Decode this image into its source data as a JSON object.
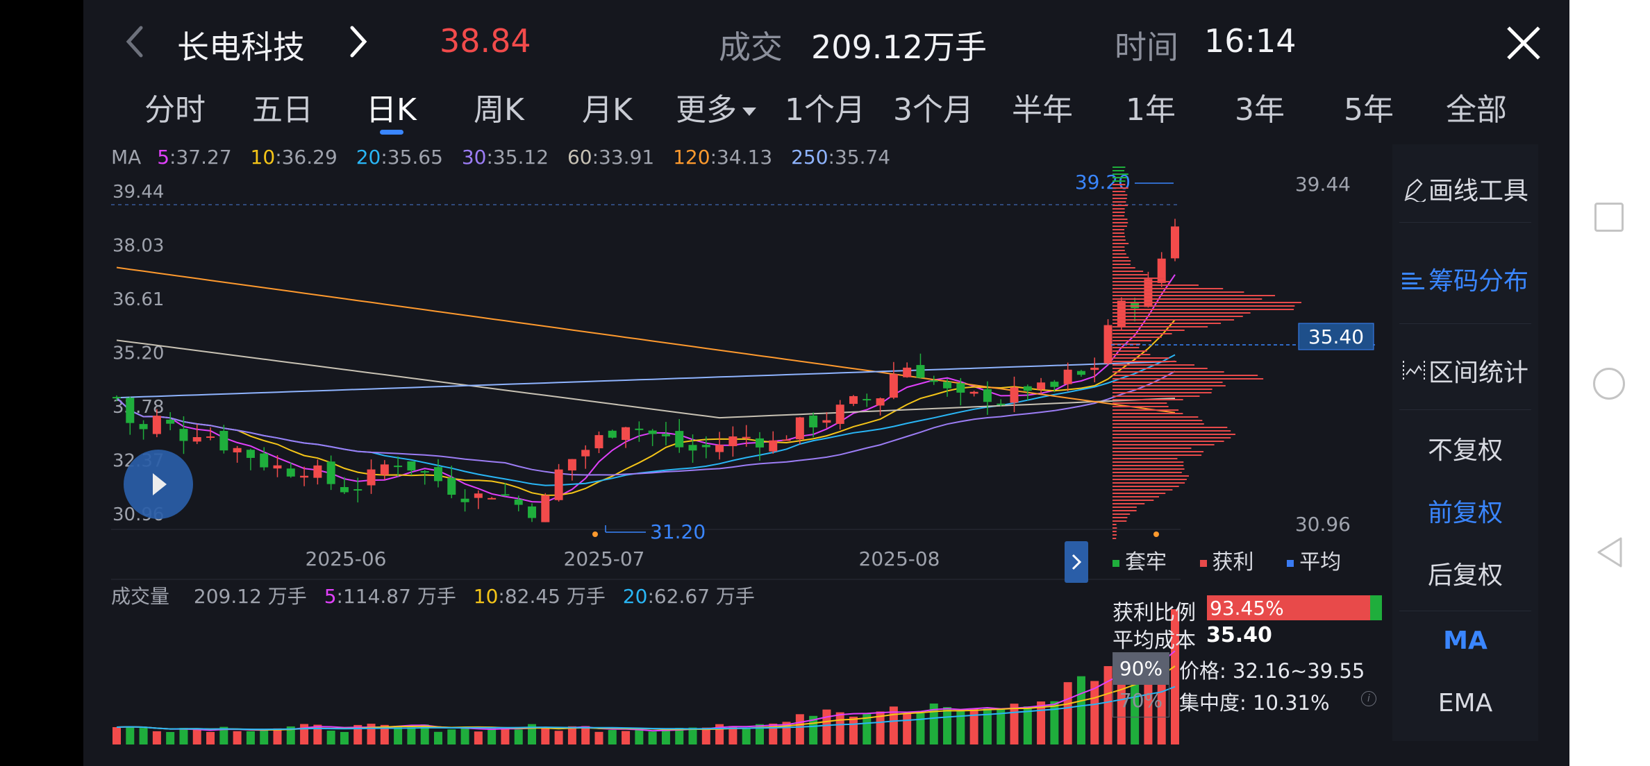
{
  "header": {
    "stock_name": "长电科技",
    "price": "38.84",
    "volume_label": "成交",
    "volume_value": "209.12万手",
    "time_label": "时间",
    "time_value": "16:14"
  },
  "tabs": [
    {
      "label": "分时"
    },
    {
      "label": "五日"
    },
    {
      "label": "日K",
      "active": true
    },
    {
      "label": "周K"
    },
    {
      "label": "月K"
    },
    {
      "label": "更多"
    },
    {
      "label": "1个月"
    },
    {
      "label": "3个月"
    },
    {
      "label": "半年"
    },
    {
      "label": "1年"
    },
    {
      "label": "3年"
    },
    {
      "label": "5年"
    },
    {
      "label": "全部"
    }
  ],
  "ma_legend": {
    "title": "MA",
    "items": [
      {
        "key": "5",
        "value": ":37.27",
        "color": "#e040fb"
      },
      {
        "key": "10",
        "value": ":36.29",
        "color": "#f5c518"
      },
      {
        "key": "20",
        "value": ":35.65",
        "color": "#29b6f6"
      },
      {
        "key": "30",
        "value": ":35.12",
        "color": "#9c7df5"
      },
      {
        "key": "60",
        "value": ":33.91",
        "color": "#c8c2b4"
      },
      {
        "key": "120",
        "value": ":34.13",
        "color": "#ff9a2e"
      },
      {
        "key": "250",
        "value": ":35.74",
        "color": "#8fb4ff"
      }
    ]
  },
  "kline": {
    "y_ticks": [
      "39.44",
      "38.03",
      "36.61",
      "35.20",
      "33.78",
      "32.37",
      "30.96"
    ],
    "x_labels": [
      "2025-06",
      "2025-07",
      "2025-08"
    ],
    "high_marker": "39.20",
    "low_marker": "31.20"
  },
  "volume_legend": {
    "title": "成交量",
    "total": "209.12 万手",
    "items": [
      {
        "key": "5",
        "value": ":114.87 万手",
        "color": "#e040fb"
      },
      {
        "key": "10",
        "value": ":82.45 万手",
        "color": "#f5c518"
      },
      {
        "key": "20",
        "value": ":62.67 万手",
        "color": "#29b6f6"
      }
    ]
  },
  "chip": {
    "top_price": "39.44",
    "bottom_price": "30.96",
    "avg_price": "35.40",
    "legend": [
      {
        "label": "套牢",
        "color": "#1fae3c"
      },
      {
        "label": "获利",
        "color": "#e84a4a"
      },
      {
        "label": "平均",
        "color": "#3a7bf2"
      }
    ],
    "profit_ratio_label": "获利比例",
    "profit_ratio_value": "93.45%",
    "profit_ratio": 0.9345,
    "avg_cost_label": "平均成本",
    "avg_cost_value": "35.40",
    "pct90": "90%",
    "pct70": "70%",
    "price_range": "价格: 32.16~39.55",
    "concentration": "集中度: 10.31%"
  },
  "side_panel": {
    "draw_tool": "画线工具",
    "chip_dist": "筹码分布",
    "range_stats": "区间统计",
    "no_adjust": "不复权",
    "fwd_adjust": "前复权",
    "back_adjust": "后复权",
    "ma": "MA",
    "ema": "EMA"
  },
  "colors": {
    "up": "#f24b4b",
    "down": "#1fae3c",
    "accent": "#3a86ff"
  }
}
